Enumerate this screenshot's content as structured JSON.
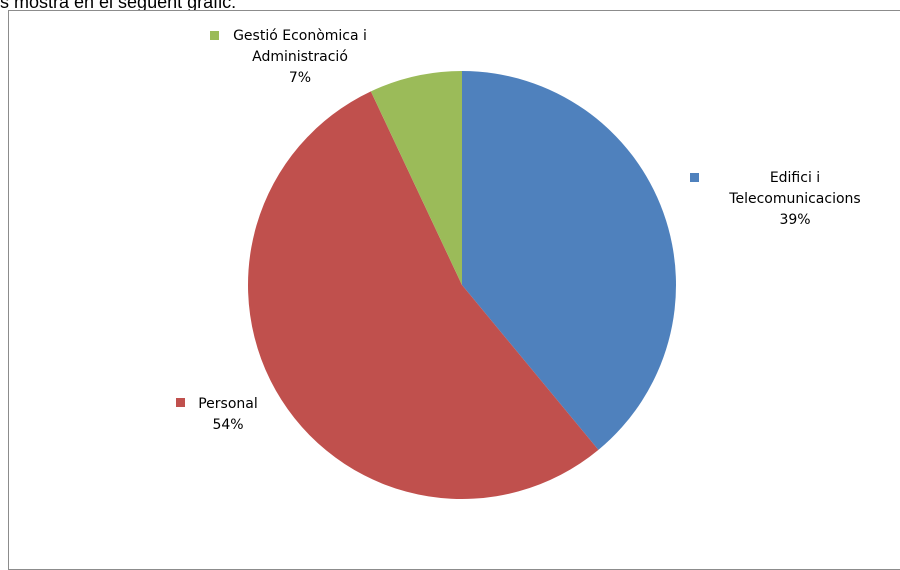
{
  "intro_text": "s mostra en el següent gràfic:",
  "chart_data": {
    "type": "pie",
    "slices": [
      {
        "label_lines": [
          "Edifici i",
          "Telecomunicacions"
        ],
        "percent_label": "39%",
        "value": 39,
        "color": "#4f81bd"
      },
      {
        "label_lines": [
          "Personal"
        ],
        "percent_label": "54%",
        "value": 54,
        "color": "#c0504d"
      },
      {
        "label_lines": [
          "Gestió Econòmica i",
          "Administració"
        ],
        "percent_label": "7%",
        "value": 7,
        "color": "#9bbb59"
      }
    ],
    "legend": "inline-labels"
  }
}
